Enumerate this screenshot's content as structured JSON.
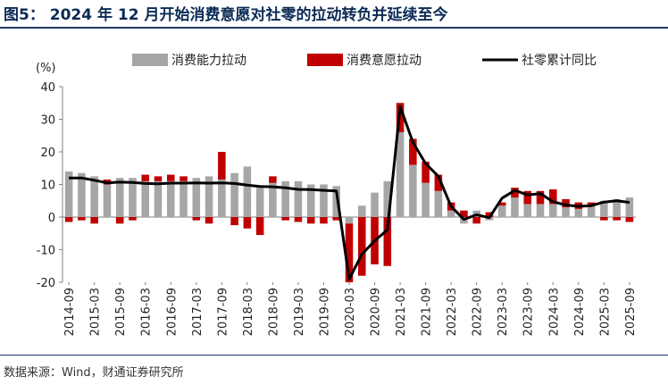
{
  "title": "图5：  2024 年 12 月开始消费意愿对社零的拉动转负并延续至今",
  "source": "数据来源：Wind，财通证券研究所",
  "chart_data": {
    "type": "bar",
    "ylabel": "(%)",
    "ylim": [
      -20,
      40
    ],
    "yticks": [
      "40",
      "30",
      "20",
      "10",
      "0",
      "-10",
      "-20"
    ],
    "ytick_values": [
      40,
      30,
      20,
      10,
      0,
      -10,
      -20
    ],
    "legend_position": "top",
    "colors": {
      "capacity": "#a6a6a6",
      "willingness": "#c00000",
      "total": "#000000"
    },
    "xtick_labels": [
      "2014-09",
      "2015-03",
      "2015-09",
      "2016-03",
      "2016-09",
      "2017-03",
      "2017-09",
      "2018-03",
      "2018-09",
      "2019-03",
      "2019-09",
      "2020-03",
      "2020-09",
      "2021-03",
      "2021-09",
      "2022-03",
      "2022-09",
      "2023-03",
      "2023-09",
      "2024-03",
      "2024-09",
      "2025-03",
      "2025-09"
    ],
    "categories": [
      "2014-09",
      "2014-12",
      "2015-03",
      "2015-06",
      "2015-09",
      "2015-12",
      "2016-03",
      "2016-06",
      "2016-09",
      "2016-12",
      "2017-03",
      "2017-06",
      "2017-09",
      "2017-12",
      "2018-03",
      "2018-06",
      "2018-09",
      "2018-12",
      "2019-03",
      "2019-06",
      "2019-09",
      "2019-12",
      "2020-03",
      "2020-06",
      "2020-09",
      "2020-12",
      "2021-03",
      "2021-06",
      "2021-09",
      "2021-12",
      "2022-03",
      "2022-06",
      "2022-09",
      "2022-12",
      "2023-03",
      "2023-06",
      "2023-09",
      "2023-12",
      "2024-03",
      "2024-06",
      "2024-09",
      "2024-12",
      "2025-03",
      "2025-06",
      "2025-09"
    ],
    "series": [
      {
        "name": "消费能力拉动",
        "kind": "bar",
        "values": [
          14,
          13.5,
          12.5,
          10,
          12,
          12,
          11,
          11,
          11,
          11,
          12,
          12.5,
          11.5,
          13.5,
          15.5,
          9,
          10.5,
          11,
          11,
          10,
          10,
          9.5,
          -2,
          3.5,
          7.5,
          11,
          26,
          16,
          10.5,
          8,
          2,
          -2,
          2,
          -1,
          3.5,
          6,
          4,
          4,
          4,
          3,
          2.5,
          3.5,
          5,
          5.5,
          6
        ]
      },
      {
        "name": "消费意愿拉动",
        "kind": "bar",
        "values": [
          -1.5,
          -1,
          -2,
          1.5,
          -2,
          -1,
          2,
          1.5,
          2,
          1.5,
          -1,
          -2,
          8.5,
          -2.5,
          -3.5,
          -5.5,
          2,
          -1,
          -1.5,
          -2,
          -2,
          -1,
          -18,
          -18,
          -14.5,
          -15,
          9,
          8,
          6.5,
          5,
          2.5,
          2,
          -2,
          1.5,
          1,
          3,
          4,
          4,
          4.5,
          2.5,
          2,
          1,
          -1,
          -1,
          -1.5
        ]
      },
      {
        "name": "社零累计同比",
        "kind": "line",
        "values": [
          12,
          12,
          11.3,
          10.5,
          10.7,
          10.6,
          10.3,
          10.2,
          10.4,
          10.4,
          10.5,
          10.4,
          10.5,
          10.3,
          9.8,
          9.4,
          9.3,
          9,
          8.5,
          8.4,
          8.2,
          8,
          -19,
          -11.4,
          -7.3,
          -3.9,
          33.9,
          23,
          16.4,
          12.5,
          3.3,
          -0.7,
          0.7,
          -0.2,
          5.8,
          8.2,
          6.8,
          7.2,
          4.7,
          3.7,
          3.3,
          3.5,
          4.6,
          5,
          4.5
        ]
      }
    ]
  }
}
